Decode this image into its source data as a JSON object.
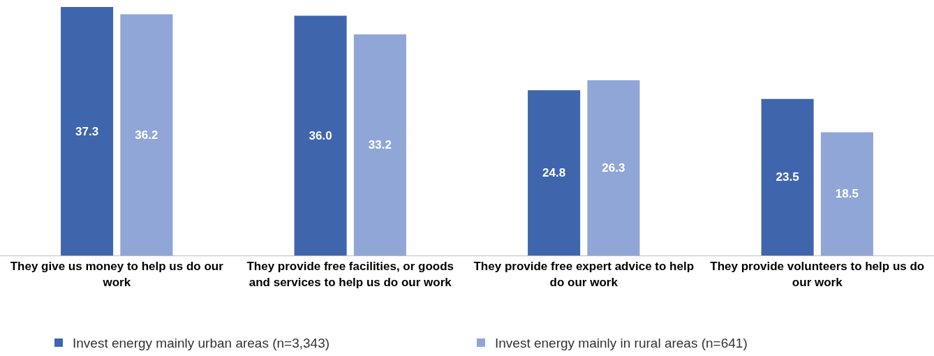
{
  "chart_data": {
    "type": "bar",
    "categories": [
      "They give us money to help us do our work",
      "They provide free facilities, or goods and services to help us do our work",
      "They provide free expert advice to help do our work",
      "They provide volunteers to help us do our work"
    ],
    "series": [
      {
        "name": "Invest energy mainly urban areas (n=3,343)",
        "color": "#3f65ad",
        "values": [
          37.3,
          36.0,
          24.8,
          23.5
        ],
        "value_labels": [
          "37.3",
          "36.0",
          "24.8",
          "23.5"
        ]
      },
      {
        "name": "Invest energy mainly in rural areas (n=641)",
        "color": "#8fa6d6",
        "values": [
          36.2,
          33.2,
          26.3,
          18.5
        ],
        "value_labels": [
          "36.2",
          "33.2",
          "26.3",
          "18.5"
        ]
      }
    ],
    "grid": false,
    "legend": "bottom"
  }
}
